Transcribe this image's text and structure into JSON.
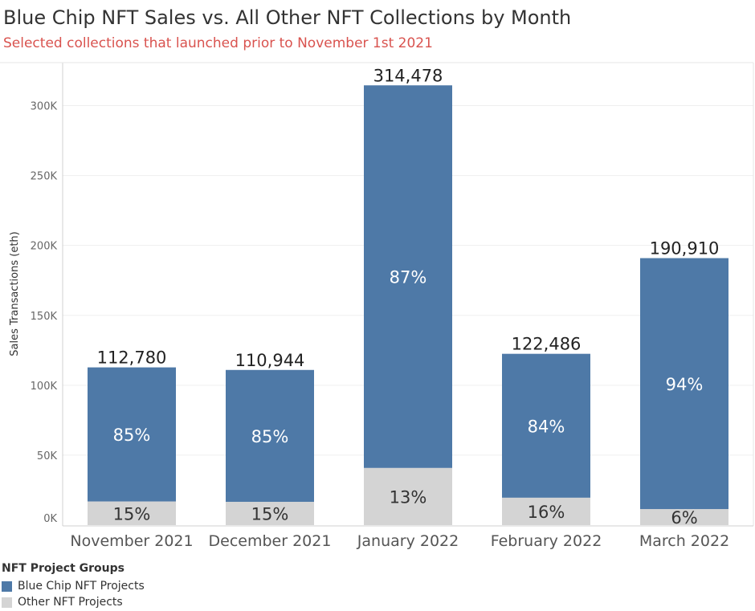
{
  "title": "Blue Chip NFT Sales vs. All Other NFT Collections by Month",
  "subtitle": "Selected collections that launched prior to November 1st 2021",
  "legend": {
    "title": "NFT Project Groups",
    "items": [
      {
        "label": "Blue Chip NFT Projects",
        "color": "#4e79a7"
      },
      {
        "label": "Other NFT Projects",
        "color": "#d4d4d4"
      }
    ]
  },
  "chart_data": {
    "type": "bar",
    "stacked": true,
    "title": "Blue Chip NFT Sales vs. All Other NFT Collections by Month",
    "xlabel": "",
    "ylabel": "Sales Transactions (eth)",
    "ylim": [
      0,
      315000
    ],
    "yticks": [
      0,
      50000,
      100000,
      150000,
      200000,
      250000,
      300000
    ],
    "ytick_labels": [
      "0K",
      "50K",
      "100K",
      "150K",
      "200K",
      "250K",
      "300K"
    ],
    "categories": [
      "November 2021",
      "December 2021",
      "January 2022",
      "February 2022",
      "March 2022"
    ],
    "totals": [
      112780,
      110944,
      314478,
      122486,
      190910
    ],
    "total_labels": [
      "112,780",
      "110,944",
      "314,478",
      "122,486",
      "190,910"
    ],
    "series": [
      {
        "name": "Blue Chip NFT Projects",
        "color": "#4e79a7",
        "shares": [
          0.85,
          0.85,
          0.87,
          0.84,
          0.94
        ],
        "labels": [
          "85%",
          "85%",
          "87%",
          "84%",
          "94%"
        ]
      },
      {
        "name": "Other NFT Projects",
        "color": "#d4d4d4",
        "shares": [
          0.15,
          0.15,
          0.13,
          0.16,
          0.06
        ],
        "labels": [
          "15%",
          "15%",
          "13%",
          "16%",
          "6%"
        ]
      }
    ]
  }
}
